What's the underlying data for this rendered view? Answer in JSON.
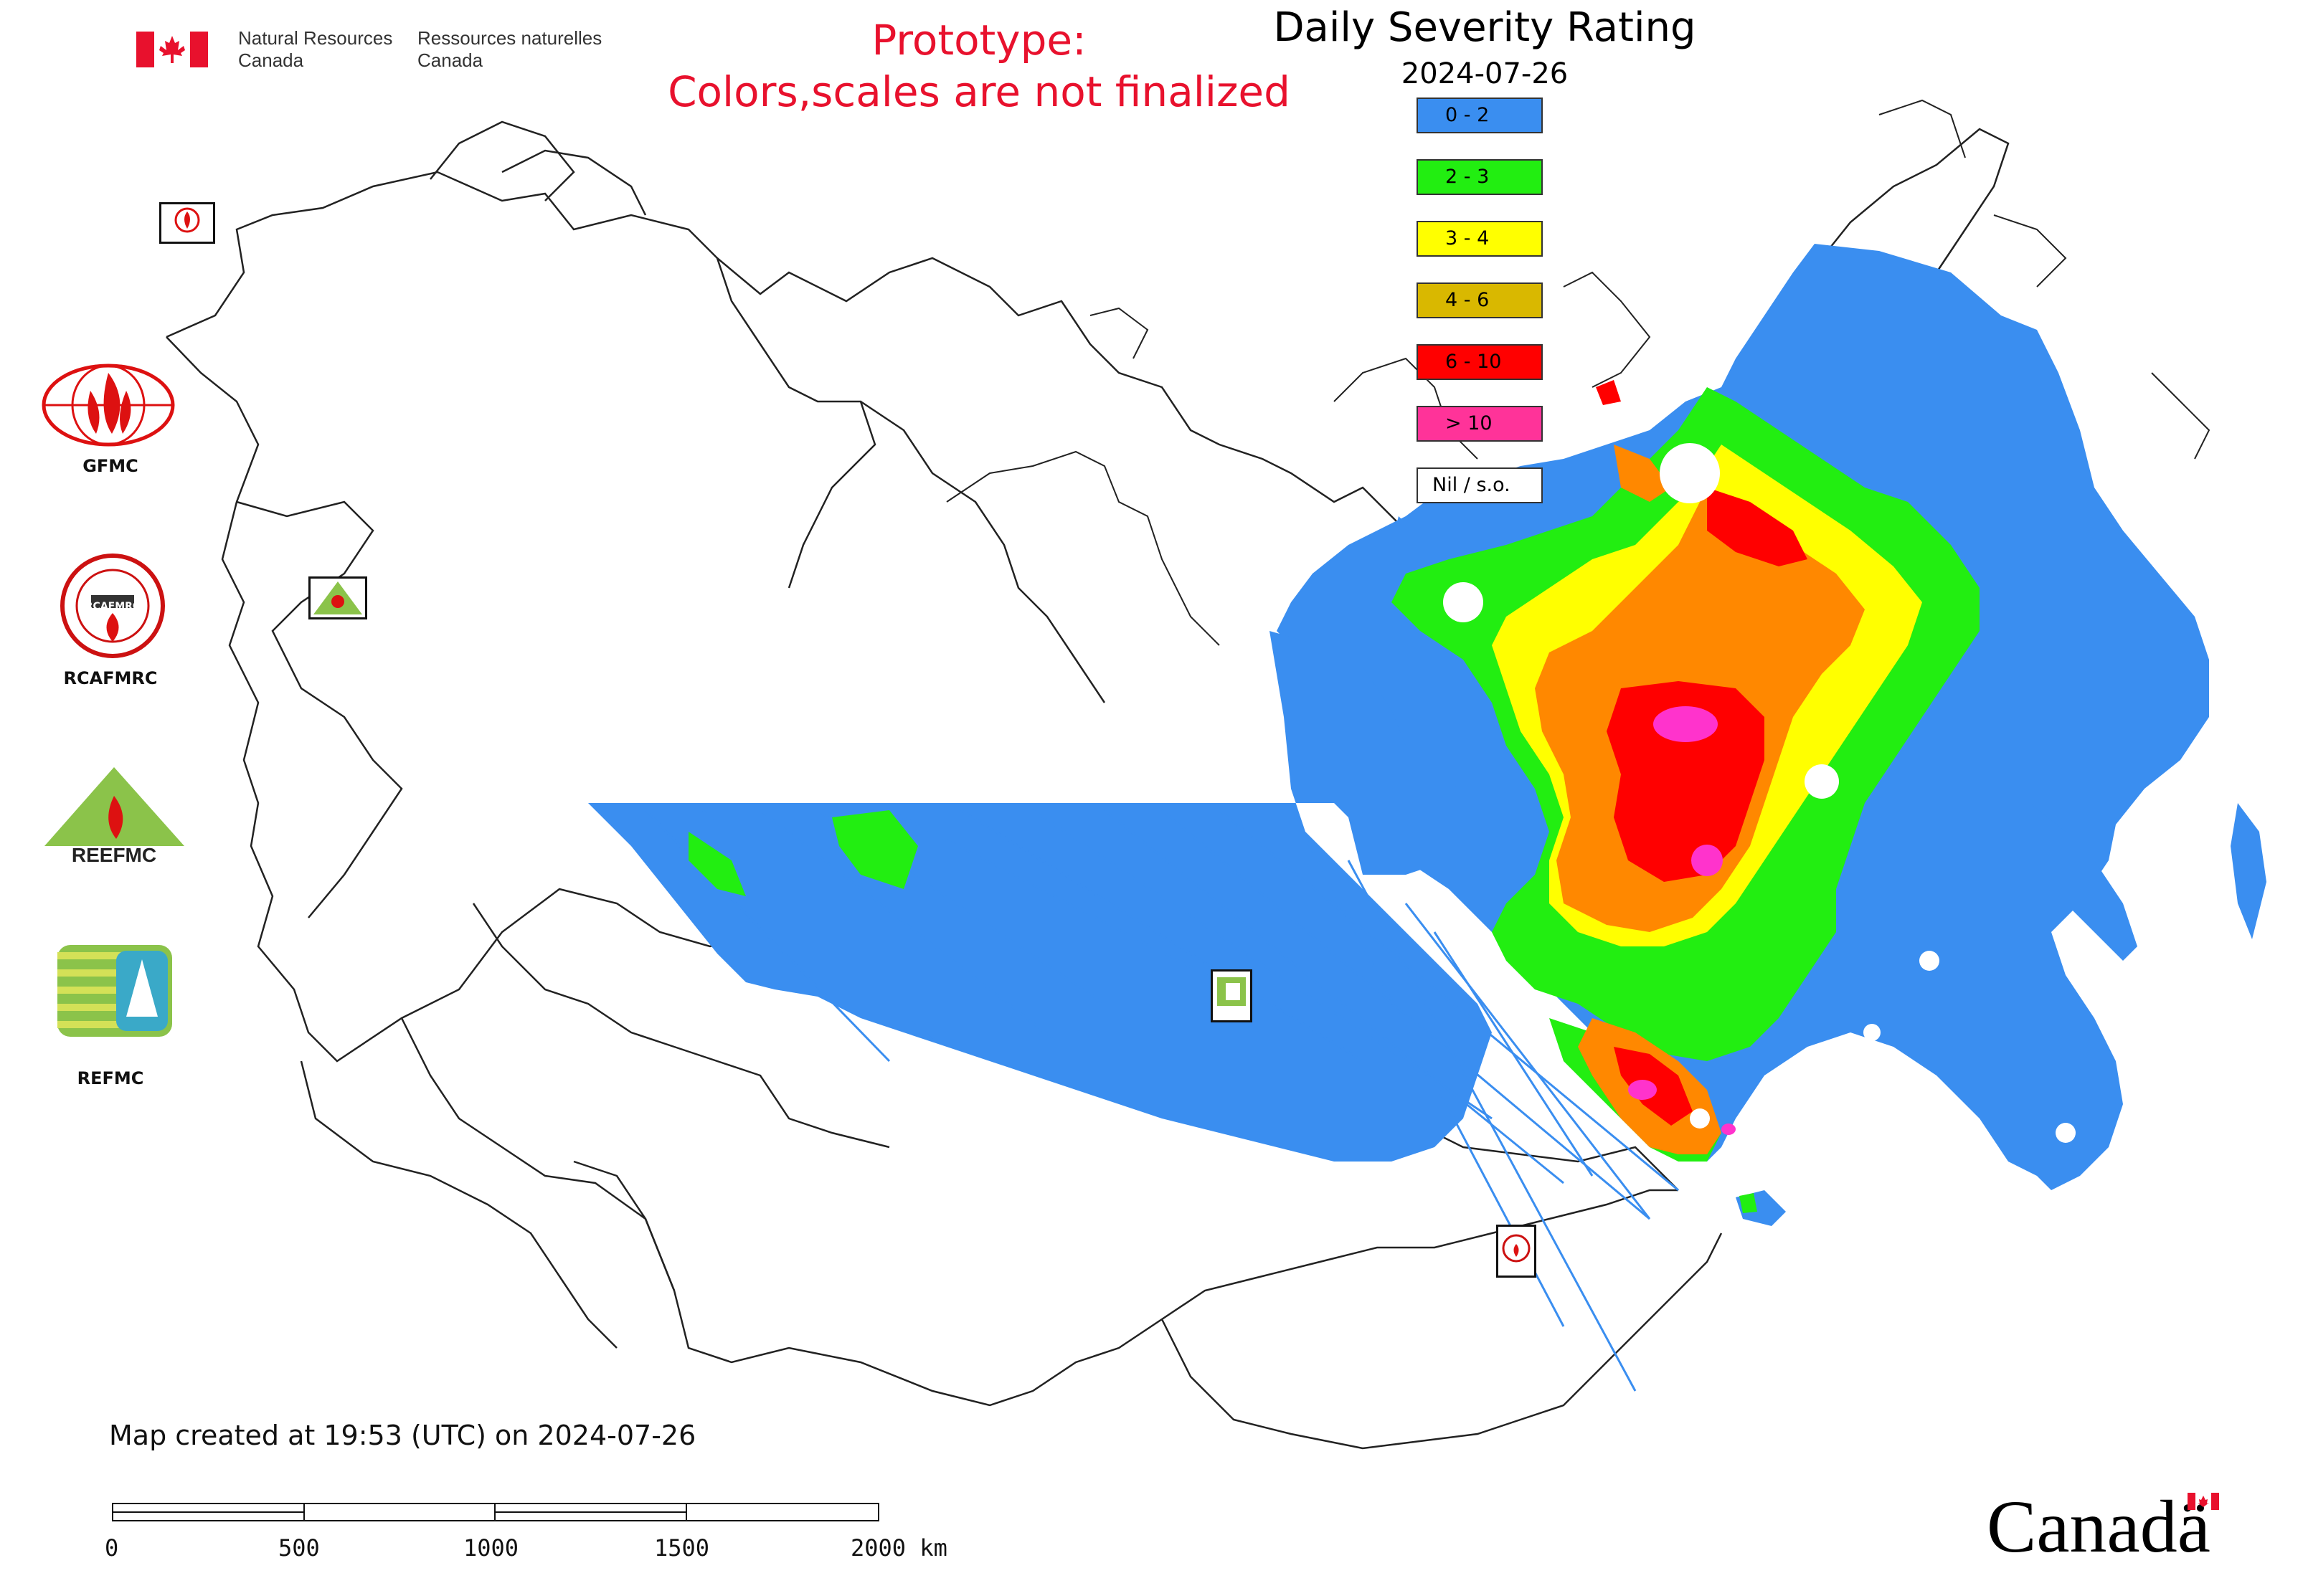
{
  "header": {
    "agency_en_line1": "Natural Resources",
    "agency_en_line2": "Canada",
    "agency_fr_line1": "Ressources naturelles",
    "agency_fr_line2": "Canada",
    "prototype_line1": "Prototype:",
    "prototype_line2": "Colors,scales are not finalized",
    "title": "Daily Severity Rating",
    "date": "2024-07-26"
  },
  "legend": {
    "items": [
      {
        "label": "0 - 2",
        "color": "#3a8ef0"
      },
      {
        "label": "2 - 3",
        "color": "#22ee11"
      },
      {
        "label": "3 - 4",
        "color": "#ffff00"
      },
      {
        "label": "4 - 6",
        "color": "#d9b800"
      },
      {
        "label": "6 - 10",
        "color": "#ff0000"
      },
      {
        "label": "> 10",
        "color": "#ff3399"
      },
      {
        "label": "Nil / s.o.",
        "color": "#ffffff"
      }
    ]
  },
  "logos": {
    "gfmc": "GFMC",
    "rcafmrc": "RCAFMRC",
    "reefmc": "REEFMC",
    "refmc": "REFMC",
    "rcafmrc_ring_text": "RCAFMRC"
  },
  "footer": {
    "created": "Map created at 19:53 (UTC) on 2024-07-26",
    "scale_labels": [
      "0",
      "500",
      "1000",
      "1500",
      "2000 km"
    ],
    "wordmark": "Canadä"
  },
  "colors": {
    "blue": "#3a8ef0",
    "green": "#22ee11",
    "yellow": "#ffff00",
    "orange": "#ff8800",
    "red": "#ff0000",
    "magenta": "#ff33cc",
    "prototype_red": "#e8112d"
  }
}
